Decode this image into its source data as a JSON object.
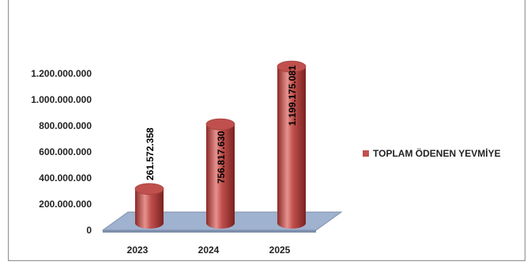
{
  "chart_data": {
    "type": "bar",
    "style": "3d-cylinder",
    "categories": [
      "2023",
      "2024",
      "2025"
    ],
    "series": [
      {
        "name": "TOPLAM ÖDENEN YEVMİYE",
        "values": [
          261572358,
          756817630,
          1199175081
        ],
        "value_labels": [
          "261.572.358",
          "756.817.630",
          "1.199.175.081"
        ]
      }
    ],
    "y_ticks": [
      "0",
      "200.000.000",
      "400.000.000",
      "600.000.000",
      "800.000.000",
      "1.000.000.000",
      "1.200.000.000"
    ],
    "ylim": [
      0,
      1200000000
    ],
    "grid": false,
    "legend_position": "right",
    "colors": {
      "bar": "#c0504d",
      "bar_dark": "#8b2a27",
      "bar_light": "#e6928f",
      "floor": "#9fb2cf",
      "floor_edge": "#7d8fab"
    }
  }
}
